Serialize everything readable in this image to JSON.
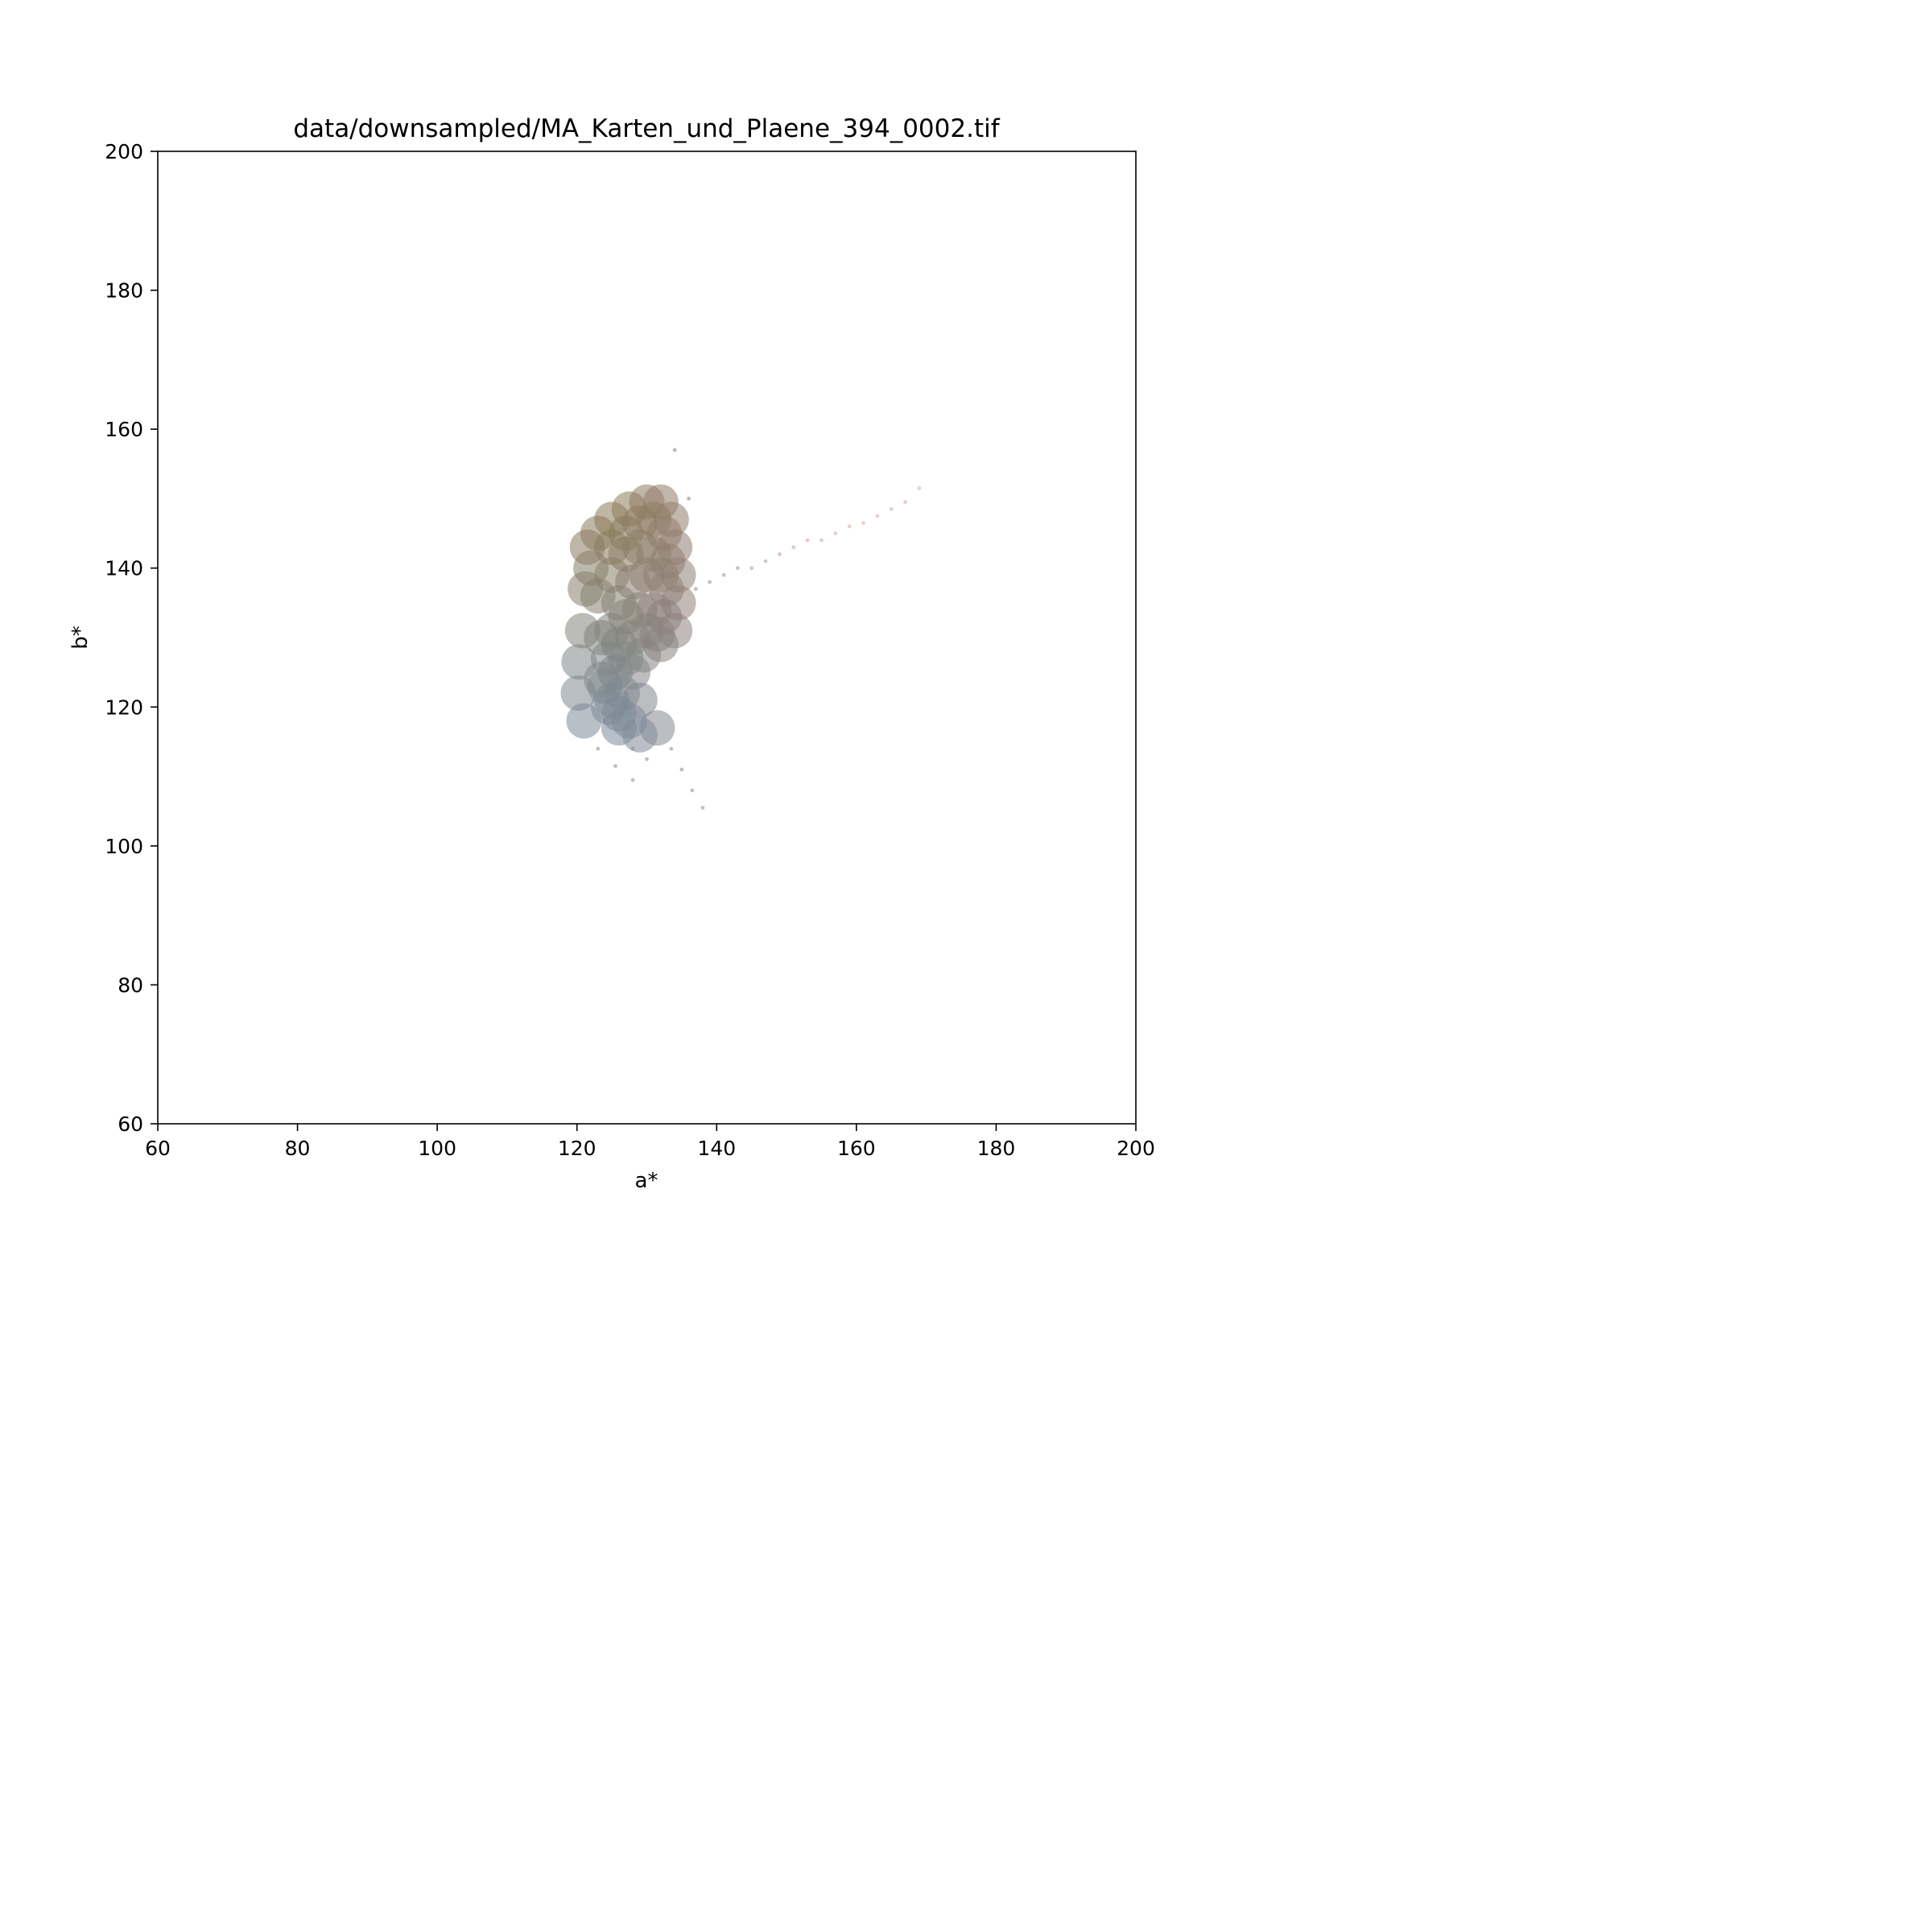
{
  "chart_data": {
    "type": "scatter",
    "title": "data/downsampled/MA_Karten_und_Plaene_394_0002.tif",
    "xlabel": "a*",
    "ylabel": "b*",
    "xlim": [
      60,
      200
    ],
    "ylim": [
      60,
      200
    ],
    "xticks": [
      "60",
      "80",
      "100",
      "120",
      "140",
      "160",
      "180",
      "200"
    ],
    "yticks": [
      "60",
      "80",
      "100",
      "120",
      "140",
      "160",
      "180",
      "200"
    ],
    "grid": false,
    "legend": "none",
    "series": [
      {
        "point_color": "per-point (pixel colour)",
        "points": [
          [
            121.5,
            143
          ],
          [
            123,
            145
          ],
          [
            125,
            147
          ],
          [
            127.5,
            148.5
          ],
          [
            130,
            149.5
          ],
          [
            132,
            149.5
          ],
          [
            133.5,
            147
          ],
          [
            134,
            143
          ],
          [
            134.5,
            139
          ],
          [
            134.5,
            135
          ],
          [
            134,
            131
          ],
          [
            132,
            129
          ],
          [
            129.5,
            127.5
          ],
          [
            128,
            125
          ],
          [
            129,
            121
          ],
          [
            131.5,
            117
          ],
          [
            133.5,
            114
          ],
          [
            135,
            111
          ],
          [
            136.5,
            108
          ],
          [
            138,
            105.5
          ],
          [
            128,
            109.5
          ],
          [
            125.5,
            111.5
          ],
          [
            123,
            114
          ],
          [
            121,
            118
          ],
          [
            120.2,
            122
          ],
          [
            120.3,
            126.5
          ],
          [
            120.8,
            131
          ],
          [
            121.2,
            137
          ],
          [
            122,
            140
          ],
          [
            123,
            136
          ],
          [
            123.5,
            130
          ],
          [
            123.5,
            124
          ],
          [
            124.5,
            120
          ],
          [
            126,
            117
          ],
          [
            128,
            114
          ],
          [
            130,
            112.5
          ],
          [
            125,
            143
          ],
          [
            127,
            145
          ],
          [
            129,
            146.5
          ],
          [
            131,
            147
          ],
          [
            132.5,
            145
          ],
          [
            133,
            141
          ],
          [
            132.8,
            137
          ],
          [
            132.5,
            133
          ],
          [
            125,
            139
          ],
          [
            127,
            142
          ],
          [
            129,
            143
          ],
          [
            131,
            142
          ],
          [
            126,
            135
          ],
          [
            128,
            138
          ],
          [
            130,
            139
          ],
          [
            132,
            139
          ],
          [
            125,
            131
          ],
          [
            127,
            133
          ],
          [
            129,
            134
          ],
          [
            131,
            134
          ],
          [
            124.5,
            127
          ],
          [
            126,
            129
          ],
          [
            128,
            130
          ],
          [
            130,
            131
          ],
          [
            131.5,
            130.5
          ],
          [
            124,
            123
          ],
          [
            125.5,
            125
          ],
          [
            127,
            127
          ],
          [
            125,
            121
          ],
          [
            126.5,
            122
          ],
          [
            126,
            119
          ],
          [
            127.5,
            118
          ],
          [
            129,
            116
          ],
          [
            137,
            137
          ],
          [
            139,
            138
          ],
          [
            141,
            139
          ],
          [
            143,
            140
          ],
          [
            145,
            140
          ],
          [
            147,
            141
          ],
          [
            149,
            142
          ],
          [
            151,
            143
          ],
          [
            153,
            144
          ],
          [
            155,
            144
          ],
          [
            157,
            145
          ],
          [
            159,
            146
          ],
          [
            161,
            146.5
          ],
          [
            163,
            147.5
          ],
          [
            165,
            148.5
          ],
          [
            167,
            149.5
          ],
          [
            169,
            151.5
          ],
          [
            136,
            150
          ],
          [
            134,
            157
          ]
        ]
      }
    ],
    "colors": {
      "olive_top": "#8b7a57",
      "slate_blue_bottom": "#7a8da0",
      "mauve_right": "#9a8080",
      "pink_tail": "#d8a7a2"
    }
  }
}
